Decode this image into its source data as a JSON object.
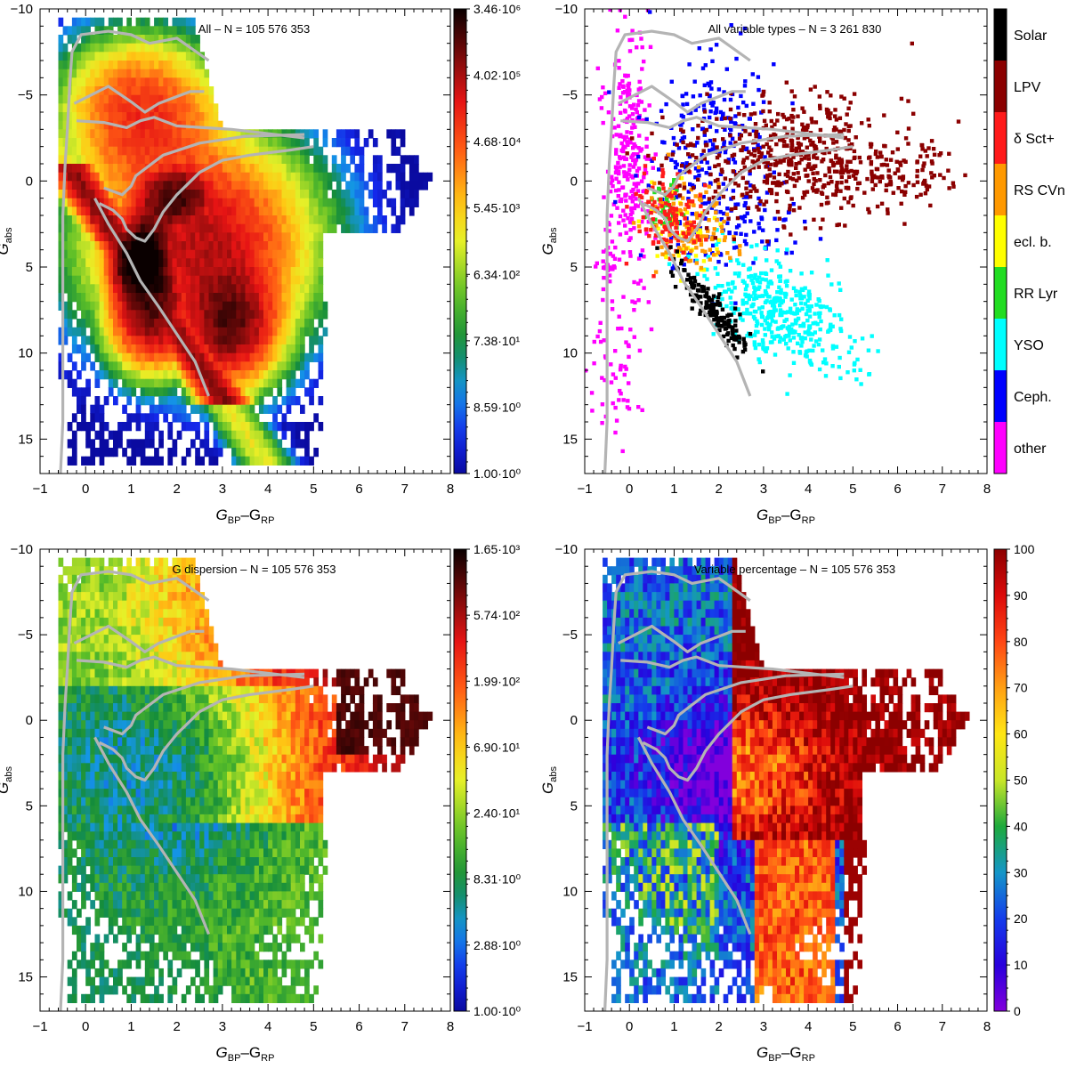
{
  "chart_data": [
    {
      "type": "heatmap",
      "title": "All – N = 105 576 353",
      "xlabel": "G",
      "xlabel_sub": "BP",
      "xlabel_mid": "–G",
      "xlabel_sub2": "RP",
      "ylabel": "G",
      "ylabel_sub": "abs",
      "xlim": [
        -1,
        8
      ],
      "ylim": [
        -10,
        17
      ],
      "y_inverted": true,
      "xticks": [
        "−1",
        "0",
        "1",
        "2",
        "3",
        "4",
        "5",
        "6",
        "7",
        "8"
      ],
      "yticks": [
        "−10",
        "−5",
        "0",
        "5",
        "10",
        "15"
      ],
      "colorbar": {
        "scale": "log",
        "labels": [
          "3.46·10⁶",
          "4.02·10⁵",
          "4.68·10⁴",
          "5.45·10³",
          "6.34·10²",
          "7.38·10¹",
          "8.59·10⁰",
          "1.00·10⁰"
        ]
      }
    },
    {
      "type": "scatter",
      "title": "All variable types – N = 3 261 830",
      "xlabel": "G",
      "xlabel_sub": "BP",
      "xlabel_mid": "–G",
      "xlabel_sub2": "RP",
      "ylabel": "G",
      "ylabel_sub": "abs",
      "xlim": [
        -1,
        8
      ],
      "ylim": [
        -10,
        17
      ],
      "y_inverted": true,
      "xticks": [
        "−1",
        "0",
        "1",
        "2",
        "3",
        "4",
        "5",
        "6",
        "7",
        "8"
      ],
      "yticks": [
        "−10",
        "−5",
        "0",
        "5",
        "10",
        "15"
      ],
      "categories": [
        {
          "name": "Solar",
          "color": "#000000"
        },
        {
          "name": "LPV",
          "color": "#8b0000"
        },
        {
          "name": "δ Sct+",
          "color": "#ff1a1a"
        },
        {
          "name": "RS CVn",
          "color": "#ff9900"
        },
        {
          "name": "ecl. b.",
          "color": "#ffff00"
        },
        {
          "name": "RR Lyr",
          "color": "#22dd22"
        },
        {
          "name": "YSO",
          "color": "#00ffff"
        },
        {
          "name": "Ceph.",
          "color": "#0000ff"
        },
        {
          "name": "other",
          "color": "#ff00ff"
        }
      ]
    },
    {
      "type": "heatmap",
      "title": "G dispersion – N = 105 576 353",
      "xlabel": "G",
      "xlabel_sub": "BP",
      "xlabel_mid": "–G",
      "xlabel_sub2": "RP",
      "ylabel": "G",
      "ylabel_sub": "abs",
      "xlim": [
        -1,
        8
      ],
      "ylim": [
        -10,
        17
      ],
      "y_inverted": true,
      "xticks": [
        "−1",
        "0",
        "1",
        "2",
        "3",
        "4",
        "5",
        "6",
        "7",
        "8"
      ],
      "yticks": [
        "−10",
        "−5",
        "0",
        "5",
        "10",
        "15"
      ],
      "colorbar": {
        "scale": "log",
        "labels": [
          "1.65·10³",
          "5.74·10²",
          "1.99·10²",
          "6.90·10¹",
          "2.40·10¹",
          "8.31·10⁰",
          "2.88·10⁰",
          "1.00·10⁰"
        ]
      }
    },
    {
      "type": "heatmap",
      "title": "Variable percentage – N = 105 576 353",
      "xlabel": "G",
      "xlabel_sub": "BP",
      "xlabel_mid": "–G",
      "xlabel_sub2": "RP",
      "ylabel": "G",
      "ylabel_sub": "abs",
      "xlim": [
        -1,
        8
      ],
      "ylim": [
        -10,
        17
      ],
      "y_inverted": true,
      "xticks": [
        "−1",
        "0",
        "1",
        "2",
        "3",
        "4",
        "5",
        "6",
        "7",
        "8"
      ],
      "yticks": [
        "−10",
        "−5",
        "0",
        "5",
        "10",
        "15"
      ],
      "colorbar": {
        "scale": "linear",
        "labels": [
          "100",
          "90",
          "80",
          "70",
          "60",
          "50",
          "40",
          "30",
          "20",
          "10",
          "0"
        ]
      }
    }
  ]
}
